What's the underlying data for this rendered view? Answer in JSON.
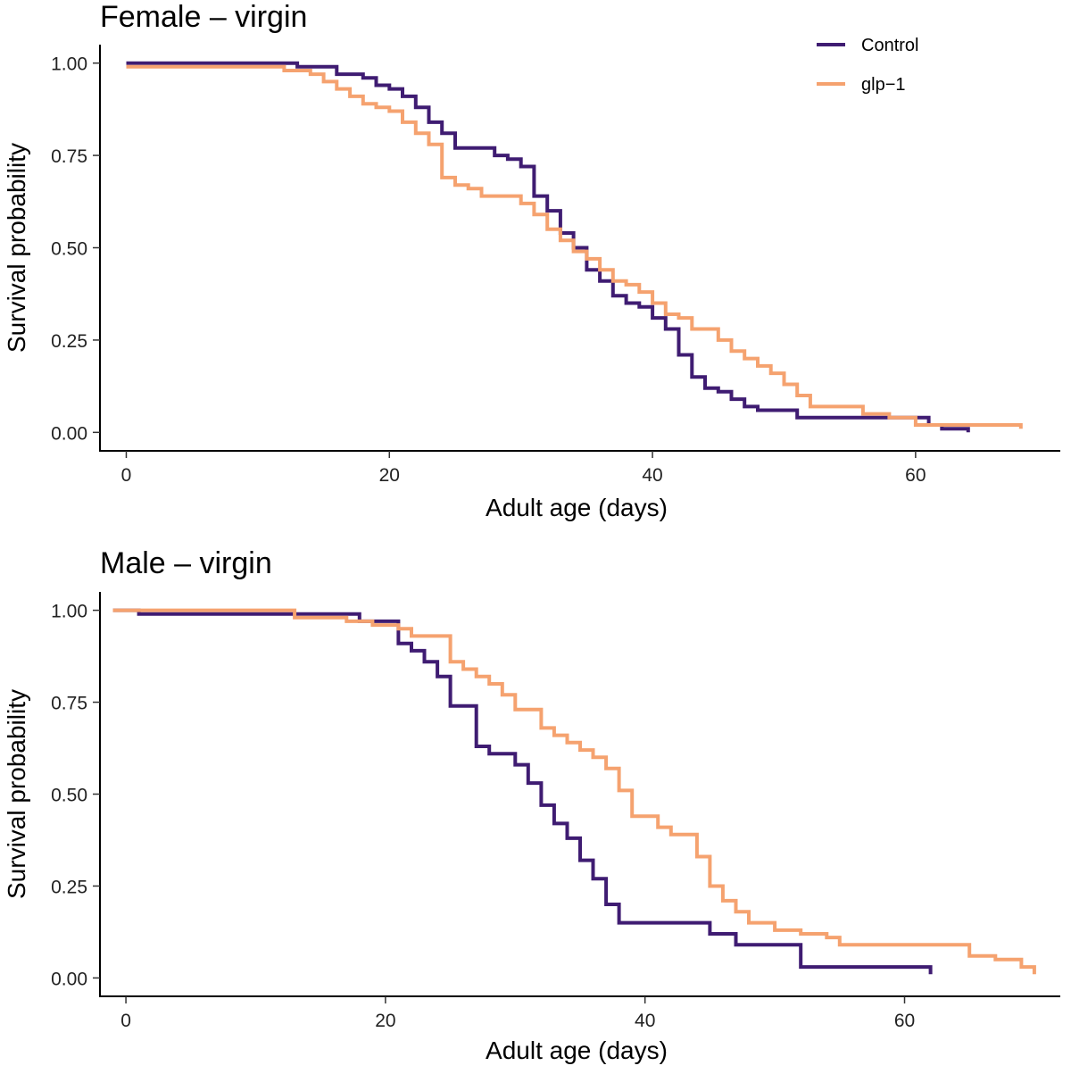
{
  "chart_data": [
    {
      "type": "line",
      "subtype": "kaplan-meier-step",
      "title": "Female – virgin",
      "xlabel": "Adult age (days)",
      "ylabel": "Survival probability",
      "xlim": [
        -2,
        71
      ],
      "ylim": [
        -0.05,
        1.05
      ],
      "xticks": [
        0,
        20,
        40,
        60
      ],
      "xtick_labels": [
        "0",
        "20",
        "40",
        "60"
      ],
      "yticks": [
        0,
        0.25,
        0.5,
        0.75,
        1
      ],
      "ytick_labels": [
        "0.00",
        "0.25",
        "0.50",
        "0.75",
        "1.00"
      ],
      "grid": false,
      "legend": {
        "position": "top-right",
        "entries": [
          {
            "name": "Control",
            "color": "#3f1c72"
          },
          {
            "name": "glp−1",
            "color": "#f5a26f"
          }
        ]
      },
      "series": [
        {
          "name": "Control",
          "color": "#3f1c72",
          "x": [
            0,
            13,
            16,
            18,
            19,
            20,
            21,
            22,
            23,
            24,
            25,
            26,
            28,
            29,
            30,
            31,
            32,
            33,
            34,
            35,
            36,
            37,
            38,
            39,
            40,
            41,
            42,
            43,
            44,
            45,
            46,
            47,
            48,
            51,
            52,
            56,
            58,
            60,
            61,
            62,
            64
          ],
          "y": [
            1.0,
            0.99,
            0.97,
            0.96,
            0.94,
            0.93,
            0.91,
            0.88,
            0.84,
            0.81,
            0.77,
            0.77,
            0.75,
            0.74,
            0.72,
            0.64,
            0.6,
            0.54,
            0.5,
            0.44,
            0.41,
            0.37,
            0.35,
            0.34,
            0.31,
            0.28,
            0.21,
            0.15,
            0.12,
            0.11,
            0.09,
            0.07,
            0.06,
            0.04,
            0.04,
            0.04,
            0.04,
            0.04,
            0.02,
            0.01,
            0.0
          ]
        },
        {
          "name": "glp−1",
          "color": "#f5a26f",
          "x": [
            0,
            12,
            14,
            15,
            16,
            17,
            18,
            19,
            20,
            21,
            22,
            23,
            24,
            25,
            26,
            27,
            30,
            31,
            32,
            33,
            34,
            35,
            36,
            37,
            38,
            39,
            40,
            41,
            42,
            43,
            44,
            45,
            46,
            47,
            48,
            49,
            50,
            51,
            52,
            56,
            58,
            60,
            65,
            68
          ],
          "y": [
            0.99,
            0.98,
            0.97,
            0.95,
            0.93,
            0.91,
            0.89,
            0.88,
            0.87,
            0.84,
            0.81,
            0.78,
            0.69,
            0.67,
            0.66,
            0.64,
            0.62,
            0.59,
            0.55,
            0.52,
            0.49,
            0.47,
            0.44,
            0.41,
            0.4,
            0.38,
            0.35,
            0.32,
            0.31,
            0.28,
            0.28,
            0.25,
            0.22,
            0.2,
            0.18,
            0.16,
            0.13,
            0.1,
            0.07,
            0.05,
            0.04,
            0.02,
            0.02,
            0.01
          ]
        }
      ]
    },
    {
      "type": "line",
      "subtype": "kaplan-meier-step",
      "title": "Male – virgin",
      "xlabel": "Adult age (days)",
      "ylabel": "Survival probability",
      "xlim": [
        -2,
        72
      ],
      "ylim": [
        -0.05,
        1.05
      ],
      "xticks": [
        0,
        20,
        40,
        60
      ],
      "xtick_labels": [
        "0",
        "20",
        "40",
        "60"
      ],
      "yticks": [
        0,
        0.25,
        0.5,
        0.75,
        1
      ],
      "ytick_labels": [
        "0.00",
        "0.25",
        "0.50",
        "0.75",
        "1.00"
      ],
      "grid": false,
      "series": [
        {
          "name": "Control",
          "color": "#3f1c72",
          "x": [
            -1,
            1,
            18,
            21,
            22,
            23,
            24,
            25,
            27,
            28,
            30,
            31,
            32,
            33,
            34,
            35,
            36,
            37,
            38,
            43,
            45,
            47,
            50,
            52,
            62
          ],
          "y": [
            1.0,
            0.99,
            0.97,
            0.91,
            0.89,
            0.86,
            0.82,
            0.74,
            0.63,
            0.61,
            0.58,
            0.53,
            0.47,
            0.42,
            0.38,
            0.32,
            0.27,
            0.2,
            0.15,
            0.15,
            0.12,
            0.09,
            0.09,
            0.03,
            0.01
          ]
        },
        {
          "name": "glp−1",
          "color": "#f5a26f",
          "x": [
            -1,
            13,
            17,
            19,
            21,
            22,
            25,
            26,
            27,
            28,
            29,
            30,
            32,
            33,
            34,
            35,
            36,
            37,
            38,
            39,
            41,
            42,
            43,
            44,
            45,
            46,
            47,
            48,
            50,
            52,
            54,
            55,
            64,
            65,
            67,
            69,
            70
          ],
          "y": [
            1.0,
            0.98,
            0.97,
            0.96,
            0.95,
            0.93,
            0.86,
            0.84,
            0.82,
            0.8,
            0.77,
            0.73,
            0.68,
            0.66,
            0.64,
            0.62,
            0.6,
            0.57,
            0.51,
            0.44,
            0.41,
            0.39,
            0.39,
            0.33,
            0.25,
            0.21,
            0.18,
            0.15,
            0.13,
            0.12,
            0.11,
            0.09,
            0.09,
            0.06,
            0.05,
            0.03,
            0.01
          ]
        }
      ]
    }
  ]
}
